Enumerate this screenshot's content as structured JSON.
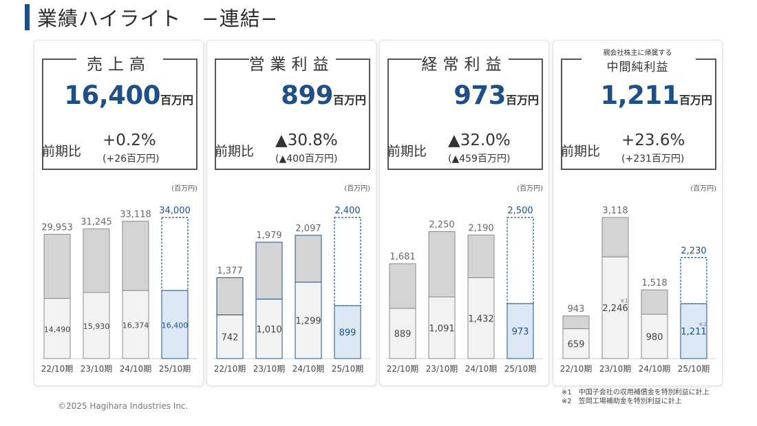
{
  "page": {
    "title": "業績ハイライト　−連結−",
    "copyright": "©2025 Hagihara Industries Inc.",
    "footnotes": [
      "※1　中国子会社の収用補償金を特別利益に計上",
      "※2　笠岡工場補助金を特別利益に計上"
    ]
  },
  "colors": {
    "accent": "#1e4f86",
    "bar_total_past": "#d4d4d4",
    "bar_part_past": "#f2f2f2",
    "bar_forecast_part": "#dce9f5",
    "plan_text": "#1e4f86"
  },
  "panels": [
    {
      "name": "売上高",
      "small": "",
      "value": "16,400",
      "unit": "百万円",
      "cmp_label": "前期比",
      "cmp_pct": "+0.2%",
      "cmp_abs": "(+26百万円)",
      "chart_unit": "(百万円)"
    },
    {
      "name": "営業利益",
      "small": "",
      "value": "899",
      "unit": "百万円",
      "cmp_label": "前期比",
      "cmp_pct": "▲30.8%",
      "cmp_abs": "(▲400百万円)",
      "chart_unit": "(百万円)"
    },
    {
      "name": "経常利益",
      "small": "",
      "value": "973",
      "unit": "百万円",
      "cmp_label": "前期比",
      "cmp_pct": "▲32.0%",
      "cmp_abs": "(▲459百万円)",
      "chart_unit": "(百万円)"
    },
    {
      "name": "中間純利益",
      "small": "親会社株主に帰属する",
      "value": "1,211",
      "unit": "百万円",
      "cmp_label": "前期比",
      "cmp_pct": "+23.6%",
      "cmp_abs": "(+231百万円)",
      "chart_unit": "(百万円)"
    }
  ],
  "chart_data": [
    {
      "type": "bar",
      "title": "売上高",
      "ylabel": "(百万円)",
      "categories": [
        "22/10期",
        "23/10期",
        "24/10期",
        "25/10期"
      ],
      "series": [
        {
          "values": [
            29953,
            31245,
            33118,
            34000
          ]
        },
        {
          "values": [
            14490,
            15930,
            16374,
            16400
          ]
        }
      ],
      "top_labels": [
        "29,953",
        "31,245",
        "33,118",
        "34,000"
      ],
      "inner_labels": [
        "14,490",
        "15,930",
        "16,374",
        "16,400"
      ],
      "inner_marks": [
        "",
        "",
        "",
        ""
      ],
      "ylim": [
        0,
        34000
      ]
    },
    {
      "type": "bar",
      "title": "営業利益",
      "ylabel": "(百万円)",
      "categories": [
        "22/10期",
        "23/10期",
        "24/10期",
        "25/10期"
      ],
      "series": [
        {
          "values": [
            1377,
            1979,
            2097,
            2400
          ]
        },
        {
          "values": [
            742,
            1010,
            1299,
            899
          ]
        }
      ],
      "top_labels": [
        "1,377",
        "1,979",
        "2,097",
        "2,400"
      ],
      "inner_labels": [
        "742",
        "1,010",
        "1,299",
        "899"
      ],
      "inner_marks": [
        "",
        "",
        "",
        ""
      ],
      "ylim": [
        0,
        2400
      ]
    },
    {
      "type": "bar",
      "title": "経常利益",
      "ylabel": "(百万円)",
      "categories": [
        "22/10期",
        "23/10期",
        "24/10期",
        "25/10期"
      ],
      "series": [
        {
          "values": [
            1681,
            2250,
            2190,
            2500
          ]
        },
        {
          "values": [
            889,
            1091,
            1432,
            973
          ]
        }
      ],
      "top_labels": [
        "1,681",
        "2,250",
        "2,190",
        "2,500"
      ],
      "inner_labels": [
        "889",
        "1,091",
        "1,432",
        "973"
      ],
      "inner_marks": [
        "",
        "",
        "",
        ""
      ],
      "ylim": [
        0,
        2500
      ]
    },
    {
      "type": "bar",
      "title": "親会社株主に帰属する中間純利益",
      "ylabel": "(百万円)",
      "categories": [
        "22/10期",
        "23/10期",
        "24/10期",
        "25/10期"
      ],
      "series": [
        {
          "values": [
            943,
            3118,
            1518,
            2230
          ]
        },
        {
          "values": [
            659,
            2246,
            980,
            1211
          ]
        }
      ],
      "top_labels": [
        "943",
        "3,118",
        "1,518",
        "2,230"
      ],
      "inner_labels": [
        "659",
        "2,246",
        "980",
        "1,211"
      ],
      "inner_marks": [
        "",
        "※1",
        "",
        "※2"
      ],
      "ylim": [
        0,
        3118
      ]
    }
  ]
}
